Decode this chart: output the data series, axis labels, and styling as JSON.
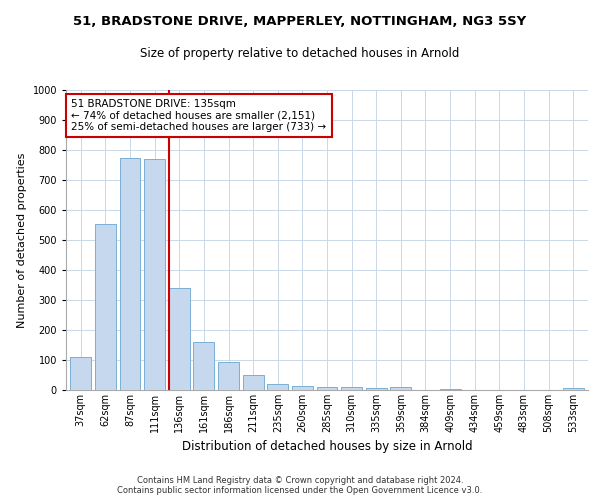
{
  "title": "51, BRADSTONE DRIVE, MAPPERLEY, NOTTINGHAM, NG3 5SY",
  "subtitle": "Size of property relative to detached houses in Arnold",
  "xlabel": "Distribution of detached houses by size in Arnold",
  "ylabel": "Number of detached properties",
  "categories": [
    "37sqm",
    "62sqm",
    "87sqm",
    "111sqm",
    "136sqm",
    "161sqm",
    "186sqm",
    "211sqm",
    "235sqm",
    "260sqm",
    "285sqm",
    "310sqm",
    "335sqm",
    "359sqm",
    "384sqm",
    "409sqm",
    "434sqm",
    "459sqm",
    "483sqm",
    "508sqm",
    "533sqm"
  ],
  "values": [
    110,
    555,
    775,
    770,
    340,
    160,
    95,
    50,
    20,
    12,
    10,
    10,
    8,
    10,
    0,
    5,
    0,
    0,
    0,
    0,
    8
  ],
  "bar_color": "#c5d8ed",
  "bar_edge_color": "#7aafd4",
  "property_line_index": 4,
  "property_line_color": "#cc0000",
  "annotation_line1": "51 BRADSTONE DRIVE: 135sqm",
  "annotation_line2": "← 74% of detached houses are smaller (2,151)",
  "annotation_line3": "25% of semi-detached houses are larger (733) →",
  "annotation_box_color": "#ffffff",
  "annotation_box_edge_color": "#cc0000",
  "ylim": [
    0,
    1000
  ],
  "yticks": [
    0,
    100,
    200,
    300,
    400,
    500,
    600,
    700,
    800,
    900,
    1000
  ],
  "footer_line1": "Contains HM Land Registry data © Crown copyright and database right 2024.",
  "footer_line2": "Contains public sector information licensed under the Open Government Licence v3.0.",
  "bg_color": "#ffffff",
  "grid_color": "#c8d8e8",
  "title_fontsize": 9.5,
  "subtitle_fontsize": 8.5,
  "ylabel_fontsize": 8,
  "xlabel_fontsize": 8.5,
  "tick_fontsize": 7,
  "annotation_fontsize": 7.5,
  "footer_fontsize": 6,
  "bar_width": 0.85
}
